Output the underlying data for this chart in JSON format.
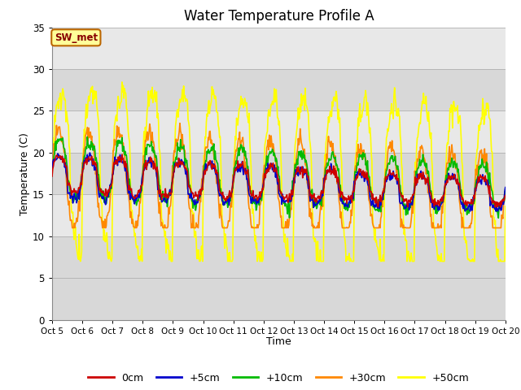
{
  "title": "Water Temperature Profile A",
  "xlabel": "Time",
  "ylabel": "Temperature (C)",
  "ylim": [
    0,
    35
  ],
  "xtick_labels": [
    "Oct 5",
    "Oct 6",
    "Oct 7",
    "Oct 8",
    "Oct 9",
    "Oct 10",
    "Oct 11",
    "Oct 12",
    "Oct 13",
    "Oct 14",
    "Oct 15",
    "Oct 16",
    "Oct 17",
    "Oct 18",
    "Oct 19",
    "Oct 20"
  ],
  "ytick_values": [
    0,
    5,
    10,
    15,
    20,
    25,
    30,
    35
  ],
  "colors": {
    "0cm": "#cc0000",
    "+5cm": "#0000cc",
    "+10cm": "#00bb00",
    "+30cm": "#ff8800",
    "+50cm": "#ffff00"
  },
  "legend_labels": [
    "0cm",
    "+5cm",
    "+10cm",
    "+30cm",
    "+50cm"
  ],
  "annotation_text": "SW_met",
  "annotation_bg": "#ffff99",
  "annotation_border": "#bb6600",
  "bg_color": "#ffffff",
  "plot_bg_color": "#d8d8d8",
  "light_band_color": "#e8e8e8",
  "grid_color": "#b0b0b0"
}
